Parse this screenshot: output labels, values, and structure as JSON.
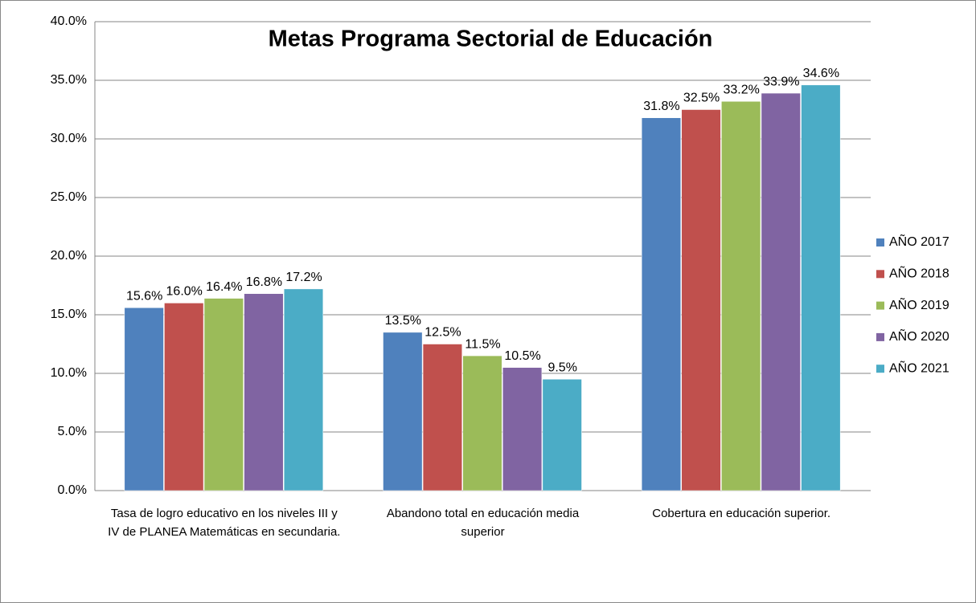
{
  "chart_data": {
    "type": "bar",
    "title": "Metas Programa Sectorial de Educación",
    "categories": [
      "Tasa de logro educativo en los niveles III y IV de PLANEA Matemáticas en secundaria.",
      "Abandono total en educación media superior",
      "Cobertura en educación superior."
    ],
    "series": [
      {
        "name": "AÑO 2017",
        "color": "#4f81bd",
        "values": [
          15.6,
          13.5,
          31.8
        ],
        "value_labels": [
          "15.6%",
          "13.5%",
          "31.8%"
        ]
      },
      {
        "name": "AÑO 2018",
        "color": "#c0504d",
        "values": [
          16.0,
          12.5,
          32.5
        ],
        "value_labels": [
          "16.0%",
          "12.5%",
          "32.5%"
        ]
      },
      {
        "name": "AÑO 2019",
        "color": "#9bbb59",
        "values": [
          16.4,
          11.5,
          33.2
        ],
        "value_labels": [
          "16.4%",
          "11.5%",
          "33.2%"
        ]
      },
      {
        "name": "AÑO 2020",
        "color": "#8064a2",
        "values": [
          16.8,
          10.5,
          33.9
        ],
        "value_labels": [
          "16.8%",
          "10.5%",
          "33.9%"
        ]
      },
      {
        "name": "AÑO 2021",
        "color": "#4bacc6",
        "values": [
          17.2,
          9.5,
          34.6
        ],
        "value_labels": [
          "17.2%",
          "9.5%",
          "34.6%"
        ]
      }
    ],
    "ylim": [
      0,
      40
    ],
    "yticks": [
      {
        "value": 0,
        "label": "0.0%"
      },
      {
        "value": 5,
        "label": "5.0%"
      },
      {
        "value": 10,
        "label": "10.0%"
      },
      {
        "value": 15,
        "label": "15.0%"
      },
      {
        "value": 20,
        "label": "20.0%"
      },
      {
        "value": 25,
        "label": "25.0%"
      },
      {
        "value": 30,
        "label": "30.0%"
      },
      {
        "value": 35,
        "label": "35.0%"
      },
      {
        "value": 40,
        "label": "40.0%"
      }
    ],
    "grid": true,
    "legend": "right"
  }
}
